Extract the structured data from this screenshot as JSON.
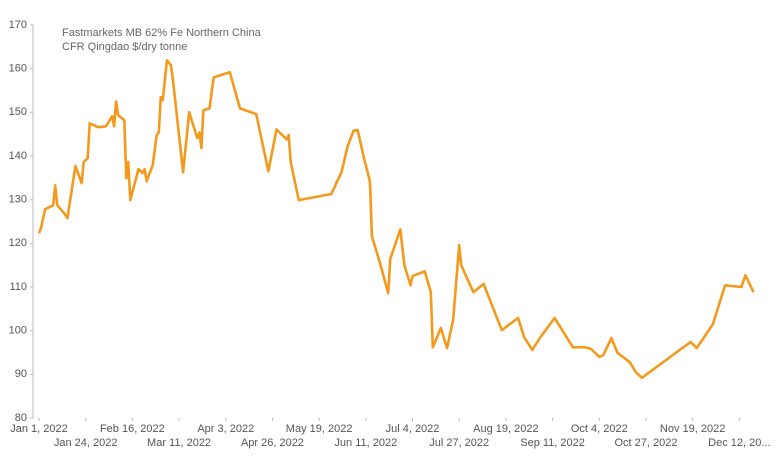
{
  "chart_data": {
    "type": "line",
    "title": "Fastmarkets MB 62% Fe Northern China",
    "subtitle": "CFR Qingdao $/dry tonne",
    "x": [
      "2022-01-01",
      "2022-01-02",
      "2022-01-04",
      "2022-01-08",
      "2022-01-09",
      "2022-01-10",
      "2022-01-13",
      "2022-01-15",
      "2022-01-19",
      "2022-01-22",
      "2022-01-23",
      "2022-01-25",
      "2022-01-26",
      "2022-01-30",
      "2022-02-03",
      "2022-02-06",
      "2022-02-07",
      "2022-02-08",
      "2022-02-09",
      "2022-02-12",
      "2022-02-13",
      "2022-02-14",
      "2022-02-15",
      "2022-02-16",
      "2022-02-19",
      "2022-02-21",
      "2022-02-22",
      "2022-02-23",
      "2022-02-26",
      "2022-02-28",
      "2022-03-01",
      "2022-03-02",
      "2022-03-03",
      "2022-03-05",
      "2022-03-07",
      "2022-03-08",
      "2022-03-13",
      "2022-03-16",
      "2022-03-20",
      "2022-03-21",
      "2022-03-22",
      "2022-03-23",
      "2022-03-26",
      "2022-03-28",
      "2022-04-05",
      "2022-04-10",
      "2022-04-18",
      "2022-04-24",
      "2022-04-28",
      "2022-05-03",
      "2022-05-04",
      "2022-05-05",
      "2022-05-09",
      "2022-05-25",
      "2022-05-30",
      "2022-06-02",
      "2022-06-05",
      "2022-06-07",
      "2022-06-10",
      "2022-06-13",
      "2022-06-14",
      "2022-06-18",
      "2022-06-22",
      "2022-06-23",
      "2022-06-28",
      "2022-06-30",
      "2022-07-03",
      "2022-07-04",
      "2022-07-10",
      "2022-07-13",
      "2022-07-14",
      "2022-07-18",
      "2022-07-21",
      "2022-07-24",
      "2022-07-27",
      "2022-07-28",
      "2022-08-03",
      "2022-08-08",
      "2022-08-17",
      "2022-08-25",
      "2022-08-28",
      "2022-09-01",
      "2022-09-05",
      "2022-09-12",
      "2022-09-21",
      "2022-09-27",
      "2022-09-30",
      "2022-10-04",
      "2022-10-06",
      "2022-10-10",
      "2022-10-13",
      "2022-10-19",
      "2022-10-22",
      "2022-10-25",
      "2022-11-18",
      "2022-11-21",
      "2022-11-29",
      "2022-12-05",
      "2022-12-13",
      "2022-12-15",
      "2022-12-19"
    ],
    "series": [
      {
        "name": "Fastmarkets MB 62% Fe Northern China",
        "color": "#f39a1e",
        "values": [
          122.3,
          123.5,
          127.8,
          128.7,
          133.3,
          128.7,
          127.1,
          125.8,
          137.7,
          133.8,
          138.6,
          139.5,
          147.5,
          146.6,
          146.8,
          149.1,
          146.8,
          152.5,
          149.3,
          148.2,
          134.9,
          138.6,
          129.9,
          131.7,
          137.0,
          136.1,
          137.0,
          134.2,
          137.9,
          144.8,
          145.4,
          153.5,
          152.8,
          161.9,
          160.8,
          157.3,
          136.3,
          150.0,
          144.1,
          145.4,
          141.8,
          150.5,
          150.9,
          158.0,
          159.2,
          150.9,
          149.6,
          136.5,
          146.1,
          143.8,
          144.8,
          138.6,
          129.9,
          131.3,
          136.3,
          142.2,
          145.8,
          145.9,
          139.7,
          134.2,
          121.6,
          115.5,
          108.6,
          116.4,
          123.2,
          115.0,
          110.4,
          112.5,
          113.6,
          108.8,
          96.2,
          100.6,
          96.0,
          102.4,
          119.6,
          115.0,
          108.8,
          110.7,
          100.1,
          102.9,
          98.5,
          95.6,
          98.5,
          102.9,
          96.2,
          96.2,
          95.8,
          94.0,
          94.4,
          98.3,
          94.9,
          92.8,
          90.5,
          89.2,
          97.4,
          96.0,
          101.5,
          110.4,
          110.0,
          112.7,
          108.8
        ]
      }
    ],
    "xlim": [
      "2022-01-01",
      "2022-12-21"
    ],
    "xticks": [
      {
        "value": "2022-01-01",
        "label": "Jan 1, 2022"
      },
      {
        "value": "2022-01-24",
        "label": "Jan 24, 2022"
      },
      {
        "value": "2022-02-16",
        "label": "Feb 16, 2022"
      },
      {
        "value": "2022-03-11",
        "label": "Mar 11, 2022"
      },
      {
        "value": "2022-04-03",
        "label": "Apr 3, 2022"
      },
      {
        "value": "2022-04-26",
        "label": "Apr 26, 2022"
      },
      {
        "value": "2022-05-19",
        "label": "May 19, 2022"
      },
      {
        "value": "2022-06-11",
        "label": "Jun 11, 2022"
      },
      {
        "value": "2022-07-04",
        "label": "Jul 4, 2022"
      },
      {
        "value": "2022-07-27",
        "label": "Jul 27, 2022"
      },
      {
        "value": "2022-08-19",
        "label": "Aug 19, 2022"
      },
      {
        "value": "2022-09-11",
        "label": "Sep 11, 2022"
      },
      {
        "value": "2022-10-04",
        "label": "Oct 4, 2022"
      },
      {
        "value": "2022-10-27",
        "label": "Oct 27, 2022"
      },
      {
        "value": "2022-11-19",
        "label": "Nov 19, 2022"
      },
      {
        "value": "2022-12-12",
        "label": "Dec 12, 20..."
      }
    ],
    "ylim": [
      80,
      170
    ],
    "yticks": [
      80,
      90,
      100,
      110,
      120,
      130,
      140,
      150,
      160,
      170
    ],
    "grid": false
  }
}
